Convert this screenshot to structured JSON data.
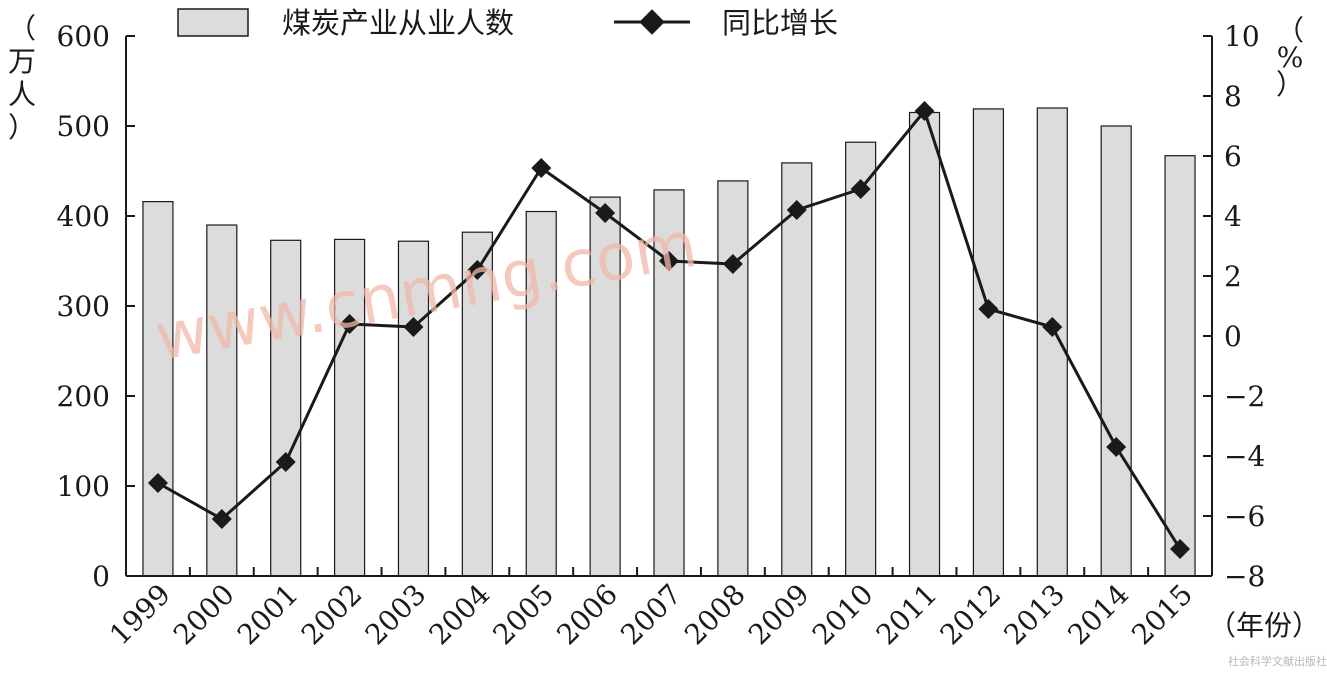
{
  "chart_data": {
    "type": "bar",
    "categories": [
      "1999",
      "2000",
      "2001",
      "2002",
      "2003",
      "2004",
      "2005",
      "2006",
      "2007",
      "2008",
      "2009",
      "2010",
      "2011",
      "2012",
      "2013",
      "2014",
      "2015"
    ],
    "series": [
      {
        "name": "煤炭产业从业人数",
        "type": "bar",
        "axis": "left",
        "values": [
          416,
          390,
          373,
          374,
          372,
          382,
          405,
          421,
          429,
          439,
          459,
          482,
          515,
          519,
          520,
          500,
          467
        ]
      },
      {
        "name": "同比增长",
        "type": "line",
        "axis": "right",
        "values": [
          -4.9,
          -6.1,
          -4.2,
          0.4,
          0.3,
          2.2,
          5.6,
          4.1,
          2.5,
          2.4,
          4.2,
          4.9,
          7.5,
          0.9,
          0.3,
          -3.7,
          -7.1
        ]
      }
    ],
    "left_axis": {
      "unit": "（万人）",
      "ylim": [
        0,
        600
      ],
      "ticks": [
        0,
        100,
        200,
        300,
        400,
        500,
        600
      ],
      "tick_labels": [
        "0",
        "100",
        "200",
        "300",
        "400",
        "500",
        "600"
      ]
    },
    "right_axis": {
      "unit": "（%）",
      "ylim": [
        -8,
        10
      ],
      "ticks": [
        -8,
        -6,
        -4,
        -2,
        0,
        2,
        4,
        6,
        8,
        10
      ],
      "tick_labels": [
        "−8",
        "−6",
        "−4",
        "−2",
        "0",
        "2",
        "4",
        "6",
        "8",
        "10"
      ]
    },
    "xlabel": "（年份）",
    "legend_position": "top",
    "grid": false,
    "colors": {
      "bar_fill": "#dcdcdc",
      "bar_stroke": "#1a1a1a",
      "line": "#1a1a1a",
      "marker": "#1a1a1a"
    }
  },
  "watermark": "www.cnmng.com",
  "publisher_mark": "社会科学文献出版社"
}
